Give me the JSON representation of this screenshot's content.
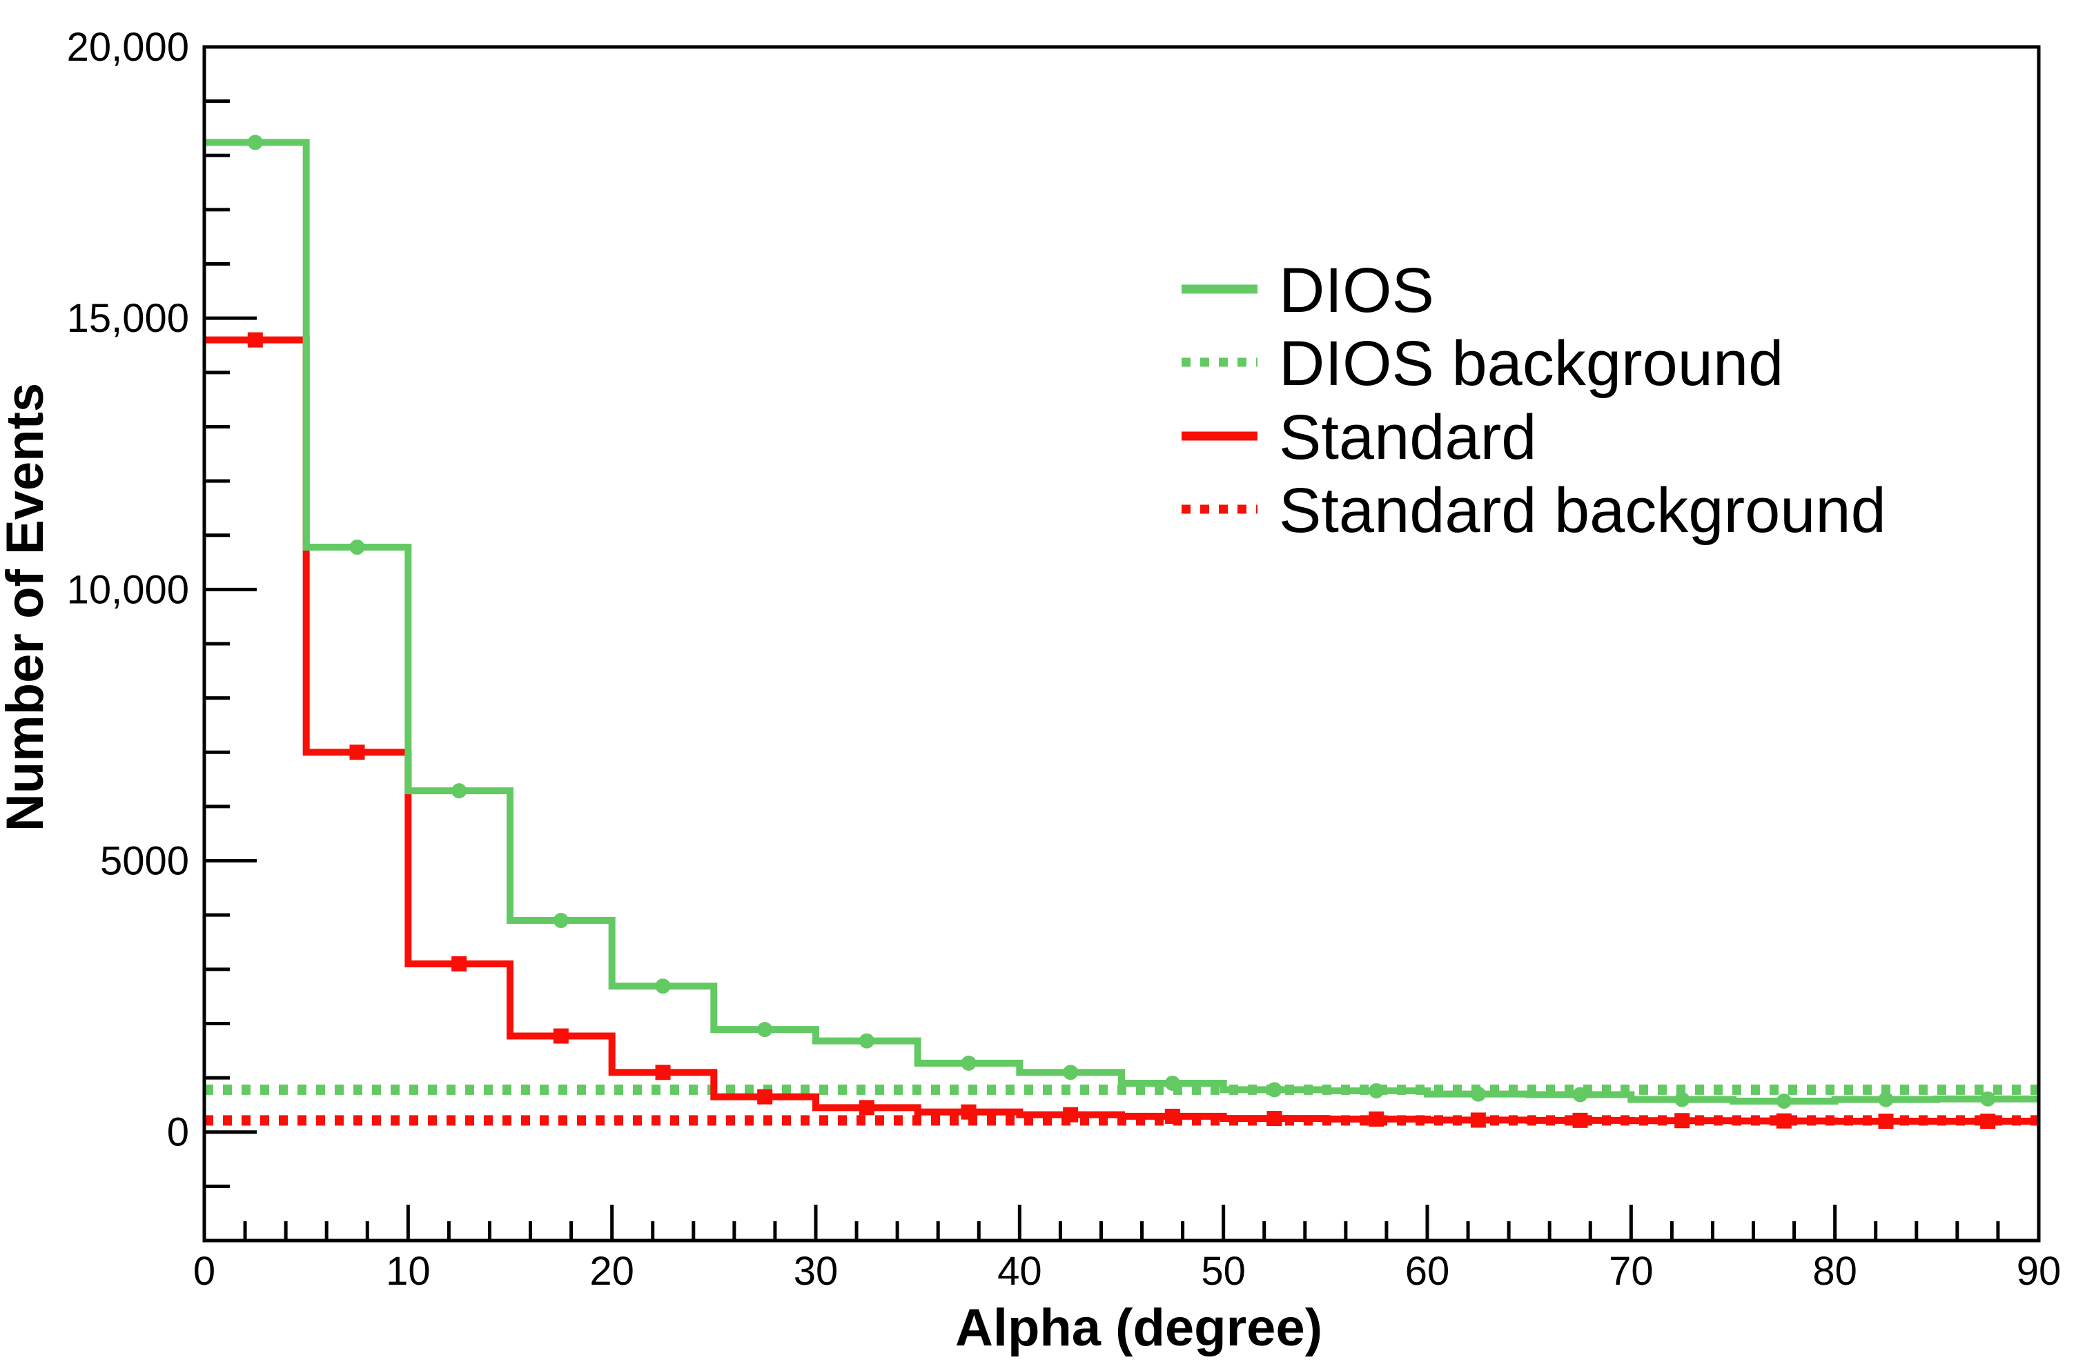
{
  "page": {
    "background": "#ffffff"
  },
  "chart_data": {
    "type": "line",
    "subtype": "step-histogram",
    "title": "",
    "xlabel": "Alpha (degree)",
    "ylabel": "Number of Events",
    "xlim": [
      0,
      90
    ],
    "ylim": [
      -2000,
      20000
    ],
    "grid": false,
    "legend_position": "top-right-inside",
    "bin_width": 5,
    "bin_edges": [
      0,
      5,
      10,
      15,
      20,
      25,
      30,
      35,
      40,
      45,
      50,
      55,
      60,
      65,
      70,
      75,
      80,
      85,
      90
    ],
    "bin_centers": [
      2.5,
      7.5,
      12.5,
      17.5,
      22.5,
      27.5,
      32.5,
      37.5,
      42.5,
      47.5,
      52.5,
      57.5,
      62.5,
      67.5,
      72.5,
      77.5,
      82.5,
      87.5
    ],
    "x_major_ticks": [
      0,
      10,
      20,
      30,
      40,
      50,
      60,
      70,
      80,
      90
    ],
    "x_major_tick_labels": [
      "0",
      "10",
      "20",
      "30",
      "40",
      "50",
      "60",
      "70",
      "80",
      "90"
    ],
    "x_minor_tick_step": 2,
    "y_major_ticks": [
      0,
      5000,
      10000,
      15000,
      20000
    ],
    "y_major_tick_labels": [
      "0",
      "5000",
      "10,000",
      "15,000",
      "20,000"
    ],
    "y_minor_tick_step": 1000,
    "series": [
      {
        "name": "DIOS",
        "color": "#63c963",
        "line_style": "solid",
        "marker": "circle",
        "values": [
          18240,
          10780,
          6290,
          3900,
          2690,
          1890,
          1680,
          1270,
          1100,
          900,
          780,
          760,
          700,
          690,
          600,
          570,
          600,
          610
        ]
      },
      {
        "name": "DIOS background",
        "color": "#63c963",
        "line_style": "dotted",
        "marker": "none",
        "flat_value": 780
      },
      {
        "name": "Standard",
        "color": "#f80f07",
        "line_style": "solid",
        "marker": "square",
        "values": [
          14600,
          7000,
          3100,
          1770,
          1100,
          650,
          450,
          370,
          320,
          290,
          250,
          240,
          220,
          215,
          210,
          205,
          200,
          200
        ]
      },
      {
        "name": "Standard background",
        "color": "#f80f07",
        "line_style": "dotted",
        "marker": "none",
        "flat_value": 215
      }
    ]
  },
  "legend": {
    "entries": [
      {
        "label": "DIOS",
        "swatch": "green-solid-line"
      },
      {
        "label": "DIOS background",
        "swatch": "green-dotted-line"
      },
      {
        "label": "Standard",
        "swatch": "red-solid-line"
      },
      {
        "label": "Standard background",
        "swatch": "red-dotted-line"
      }
    ]
  }
}
